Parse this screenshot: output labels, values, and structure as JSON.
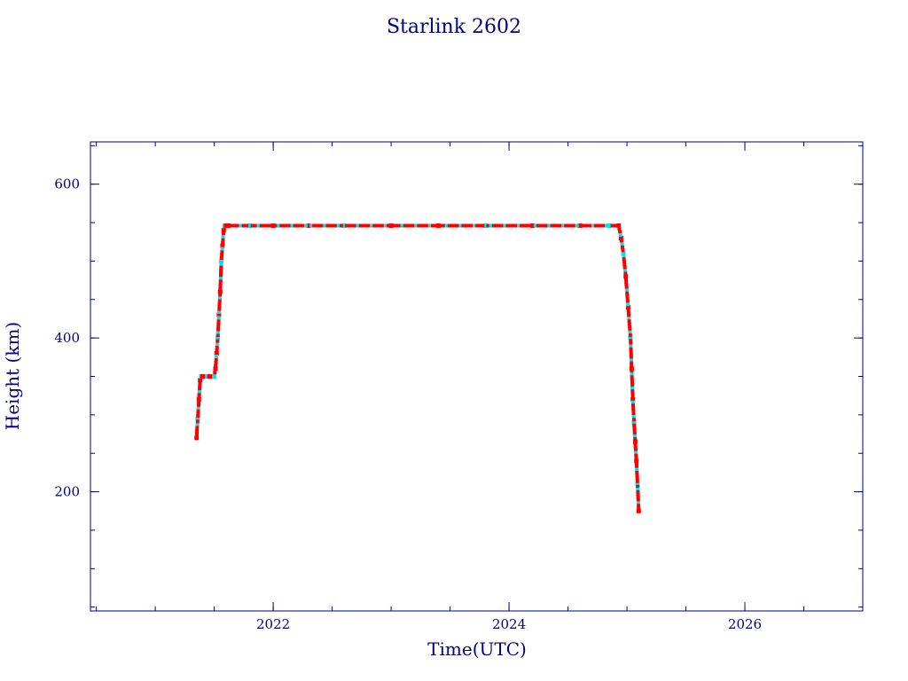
{
  "chart_data": {
    "type": "scatter",
    "title": "Starlink 2602",
    "xlabel": "Time(UTC)",
    "ylabel": "Height (km)",
    "xlim": [
      2020.45,
      2027.0
    ],
    "ylim": [
      45,
      655
    ],
    "x_major_ticks": [
      2022,
      2024,
      2026
    ],
    "x_minor_step": 0.5,
    "y_major_ticks": [
      200,
      400,
      600
    ],
    "y_minor_step": 50,
    "grid": false,
    "colors": {
      "axis": "#000080",
      "line": "#8b0000",
      "marker_primary": "#ff0000",
      "marker_secondary": "#00e5ee"
    },
    "series": [
      {
        "x": [
          2021.35,
          2021.36,
          2021.37,
          2021.38,
          2021.39,
          2021.4,
          2021.42,
          2021.44,
          2021.46,
          2021.48,
          2021.5,
          2021.51,
          2021.52,
          2021.53,
          2021.54,
          2021.55,
          2021.56,
          2021.57,
          2021.58,
          2021.59,
          2021.6,
          2021.62,
          2021.8,
          2022.0,
          2022.3,
          2022.6,
          2023.0,
          2023.4,
          2023.8,
          2024.2,
          2024.6,
          2024.85,
          2024.93,
          2024.95,
          2024.97,
          2024.99,
          2025.01,
          2025.03,
          2025.04,
          2025.05,
          2025.06,
          2025.07,
          2025.08,
          2025.09,
          2025.1
        ],
        "y": [
          270,
          295,
          320,
          345,
          350,
          350,
          350,
          350,
          350,
          350,
          350,
          360,
          380,
          400,
          430,
          460,
          500,
          520,
          540,
          546,
          546,
          546,
          546,
          546,
          546,
          546,
          546,
          546,
          546,
          546,
          546,
          546,
          546,
          530,
          510,
          480,
          440,
          400,
          360,
          320,
          290,
          265,
          240,
          210,
          175
        ]
      }
    ]
  }
}
